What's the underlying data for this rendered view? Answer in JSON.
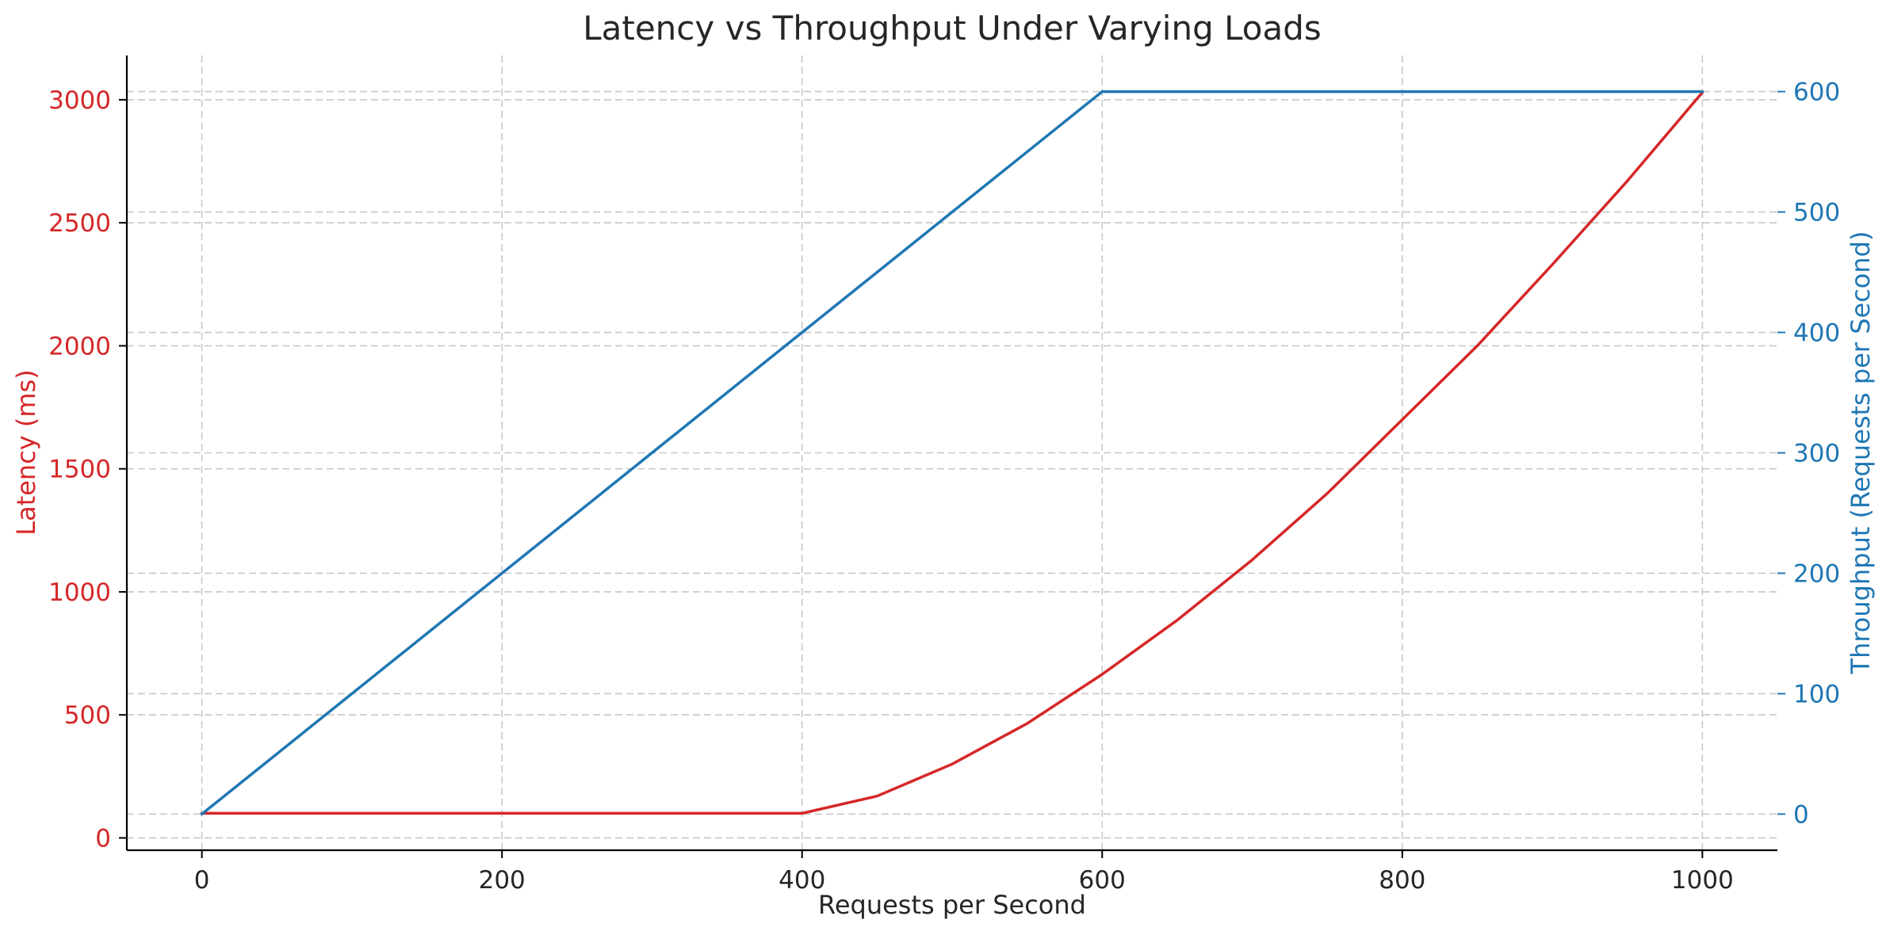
{
  "chart_data": {
    "type": "line",
    "title": "Latency vs Throughput Under Varying Loads",
    "xlabel": "Requests per Second",
    "ylabel_left": "Latency (ms)",
    "ylabel_right": "Throughput (Requests per Second)",
    "xlim": [
      -50,
      1050
    ],
    "ylim_left": [
      -50,
      3180
    ],
    "ylim_right": [
      -30,
      630
    ],
    "x_ticks": [
      0,
      200,
      400,
      600,
      800,
      1000
    ],
    "y_left_ticks": [
      0,
      500,
      1000,
      1500,
      2000,
      2500,
      3000
    ],
    "y_right_ticks": [
      0,
      100,
      200,
      300,
      400,
      500,
      600
    ],
    "grid": true,
    "colors": {
      "latency": "#d62728",
      "throughput": "#1f77b4",
      "left_axis_text": "#d62728",
      "right_axis_text": "#1f77b4"
    },
    "series": [
      {
        "key": "latency",
        "axis": "left",
        "x": [
          0,
          50,
          100,
          150,
          200,
          250,
          300,
          350,
          400,
          450,
          500,
          550,
          600,
          650,
          700,
          750,
          800,
          850,
          900,
          950,
          1000
        ],
        "values": [
          100,
          100,
          100,
          100,
          100,
          100,
          100,
          100,
          100,
          170,
          300,
          465,
          665,
          885,
          1130,
          1400,
          1700,
          2000,
          2330,
          2670,
          3030
        ]
      },
      {
        "key": "throughput",
        "axis": "right",
        "x": [
          0,
          600,
          1000
        ],
        "values": [
          0,
          600,
          600
        ]
      }
    ]
  }
}
